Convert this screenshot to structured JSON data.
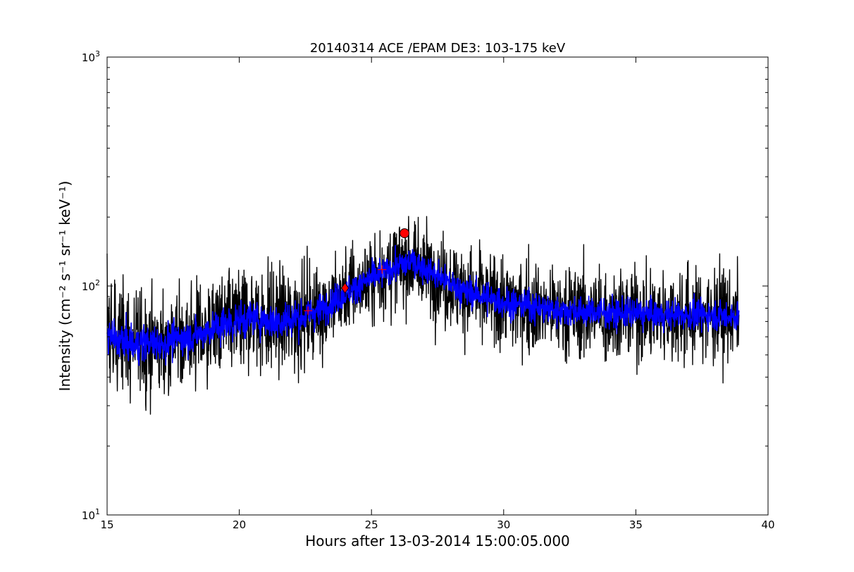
{
  "chart_data": {
    "type": "line",
    "title": "20140314 ACE /EPAM DE3: 103-175 keV",
    "xlabel": "Hours after 13-03-2014 15:00:05.000",
    "ylabel": "Intensity (cm⁻² s⁻¹ sr⁻¹ keV⁻¹)",
    "xlim": [
      15,
      40
    ],
    "ylim": [
      10,
      1000
    ],
    "yscale": "log",
    "grid": false,
    "x_ticks": [
      "15",
      "20",
      "25",
      "30",
      "35",
      "40"
    ],
    "y_ticks": [
      {
        "base": "10",
        "exp": "1"
      },
      {
        "base": "10",
        "exp": "2"
      },
      {
        "base": "10",
        "exp": "3"
      }
    ],
    "series": [
      {
        "color": "#000000",
        "description": "raw intensity",
        "x": [
          15.0,
          15.5,
          16.0,
          16.5,
          17.0,
          17.5,
          18.0,
          18.5,
          19.0,
          19.5,
          20.0,
          20.5,
          21.0,
          21.5,
          22.0,
          22.5,
          23.0,
          23.5,
          24.0,
          24.5,
          25.0,
          25.5,
          26.0,
          26.5,
          27.0,
          27.5,
          28.0,
          28.5,
          29.0,
          29.5,
          30.0,
          30.5,
          31.0,
          31.5,
          32.0,
          32.5,
          33.0,
          33.5,
          34.0,
          34.5,
          35.0,
          35.5,
          36.0,
          36.5,
          37.0,
          37.5,
          38.0,
          38.5,
          38.9
        ],
        "values": [
          60,
          58,
          55,
          57,
          56,
          58,
          60,
          62,
          65,
          68,
          70,
          72,
          71,
          70,
          72,
          74,
          78,
          85,
          92,
          100,
          108,
          115,
          122,
          128,
          120,
          110,
          102,
          95,
          92,
          88,
          85,
          83,
          82,
          80,
          78,
          78,
          77,
          77,
          76,
          76,
          76,
          75,
          75,
          75,
          75,
          75,
          75,
          74,
          74
        ],
        "spread": [
          0.35,
          0.35,
          0.35,
          0.35,
          0.35,
          0.35,
          0.35,
          0.35,
          0.35,
          0.35,
          0.35,
          0.35,
          0.35,
          0.35,
          0.35,
          0.35,
          0.32,
          0.3,
          0.3,
          0.3,
          0.3,
          0.3,
          0.3,
          0.28,
          0.3,
          0.3,
          0.32,
          0.32,
          0.32,
          0.32,
          0.32,
          0.32,
          0.32,
          0.32,
          0.32,
          0.32,
          0.32,
          0.32,
          0.32,
          0.32,
          0.32,
          0.32,
          0.32,
          0.32,
          0.32,
          0.32,
          0.32,
          0.32,
          0.32
        ]
      },
      {
        "color": "#0000ff",
        "description": "smoothed intensity",
        "x": [
          15.0,
          15.5,
          16.0,
          16.5,
          17.0,
          17.5,
          18.0,
          18.5,
          19.0,
          19.5,
          20.0,
          20.5,
          21.0,
          21.5,
          22.0,
          22.5,
          23.0,
          23.5,
          24.0,
          24.5,
          25.0,
          25.5,
          26.0,
          26.5,
          27.0,
          27.5,
          28.0,
          28.5,
          29.0,
          29.5,
          30.0,
          30.5,
          31.0,
          31.5,
          32.0,
          32.5,
          33.0,
          33.5,
          34.0,
          34.5,
          35.0,
          35.5,
          36.0,
          36.5,
          37.0,
          37.5,
          38.0,
          38.5,
          38.9
        ],
        "values": [
          60,
          58,
          55,
          57,
          56,
          58,
          60,
          62,
          65,
          68,
          70,
          72,
          71,
          70,
          72,
          74,
          78,
          85,
          92,
          100,
          108,
          115,
          122,
          128,
          120,
          110,
          102,
          95,
          92,
          88,
          85,
          83,
          82,
          80,
          78,
          78,
          77,
          77,
          76,
          76,
          76,
          75,
          75,
          75,
          75,
          75,
          75,
          74,
          74
        ],
        "spread": [
          0.12,
          0.12,
          0.12,
          0.12,
          0.12,
          0.12,
          0.12,
          0.12,
          0.12,
          0.12,
          0.12,
          0.12,
          0.12,
          0.12,
          0.12,
          0.12,
          0.11,
          0.1,
          0.1,
          0.1,
          0.1,
          0.1,
          0.1,
          0.1,
          0.1,
          0.1,
          0.1,
          0.1,
          0.1,
          0.1,
          0.1,
          0.1,
          0.1,
          0.1,
          0.1,
          0.1,
          0.1,
          0.1,
          0.1,
          0.1,
          0.1,
          0.1,
          0.1,
          0.1,
          0.1,
          0.1,
          0.1,
          0.1,
          0.1
        ]
      }
    ],
    "markers": [
      {
        "type": "plus",
        "x": 22.6,
        "y": 78,
        "color": "#ff0000"
      },
      {
        "type": "diamond",
        "x": 24.0,
        "y": 98,
        "color": "#ff0000"
      },
      {
        "type": "plus",
        "x": 25.4,
        "y": 118,
        "color": "#ff0000"
      },
      {
        "type": "circle",
        "x": 26.25,
        "y": 170,
        "color": "#ff0000"
      }
    ]
  }
}
